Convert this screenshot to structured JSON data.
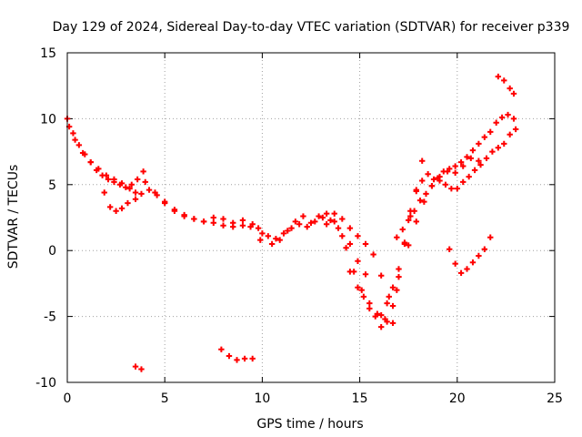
{
  "chart_data": {
    "type": "scatter",
    "title": "Day 129 of 2024, Sidereal Day-to-day VTEC variation (SDTVAR) for receiver p339",
    "xlabel": "GPS time / hours",
    "ylabel": "SDTVAR / TECUs",
    "xlim": [
      0,
      25
    ],
    "ylim": [
      -10,
      15
    ],
    "xticks": [
      "0",
      "5",
      "10",
      "15",
      "20",
      "25"
    ],
    "yticks": [
      "-10",
      "-5",
      "0",
      "5",
      "10",
      "15"
    ],
    "grid": true,
    "marker": "plus",
    "color": "#ff0000",
    "series": [
      {
        "x": [
          0.0,
          0.3,
          0.6,
          0.9,
          1.2,
          1.5,
          1.8,
          2.1,
          2.4,
          2.7,
          3.0,
          3.3,
          3.6,
          3.9
        ],
        "y": [
          10.0,
          8.9,
          8.0,
          7.3,
          6.7,
          6.1,
          5.7,
          5.4,
          5.2,
          5.0,
          4.8,
          5.0,
          5.4,
          6.0
        ]
      },
      {
        "x": [
          0.1,
          0.4,
          0.8,
          1.2,
          1.6,
          2.0,
          2.4,
          2.8,
          3.2,
          3.5
        ],
        "y": [
          9.4,
          8.4,
          7.4,
          6.7,
          6.2,
          5.7,
          5.4,
          5.1,
          4.7,
          4.4
        ]
      },
      {
        "x": [
          1.9,
          2.2,
          2.5,
          2.8,
          3.1,
          3.5,
          3.8,
          4.2,
          4.6,
          5.0,
          5.5,
          6.0,
          6.5,
          7.0,
          7.5,
          8.0,
          8.5,
          9.0,
          9.4,
          9.8
        ],
        "y": [
          4.4,
          3.3,
          3.0,
          3.2,
          3.6,
          3.9,
          4.3,
          4.6,
          4.2,
          3.7,
          3.1,
          2.7,
          2.4,
          2.2,
          2.1,
          1.9,
          1.8,
          1.9,
          1.8,
          1.7
        ]
      },
      {
        "x": [
          4.0,
          4.5,
          5.0,
          5.5,
          6.0,
          6.5,
          7.0,
          7.5,
          8.0,
          8.5,
          9.0,
          9.5,
          10.0
        ],
        "y": [
          5.2,
          4.4,
          3.6,
          3.0,
          2.6,
          2.4,
          2.2,
          2.5,
          2.4,
          2.1,
          2.3,
          2.0,
          1.3
        ]
      },
      {
        "x": [
          3.5,
          3.8
        ],
        "y": [
          -8.8,
          -9.0
        ]
      },
      {
        "x": [
          7.9,
          8.3,
          8.7,
          9.1,
          9.5
        ],
        "y": [
          -7.5,
          -8.0,
          -8.3,
          -8.2,
          -8.2
        ]
      },
      {
        "x": [
          9.9,
          10.3,
          10.7,
          11.1,
          11.5,
          11.9,
          12.3,
          12.7,
          13.1,
          13.5,
          13.9,
          14.3,
          14.7,
          15.1,
          15.5,
          15.9,
          16.3,
          16.7
        ],
        "y": [
          0.8,
          1.1,
          0.9,
          1.3,
          1.7,
          2.0,
          1.8,
          2.2,
          2.5,
          2.3,
          1.7,
          0.2,
          -1.6,
          -3.0,
          -4.0,
          -4.8,
          -5.2,
          -5.5
        ]
      },
      {
        "x": [
          10.5,
          10.9,
          11.3,
          11.7,
          12.1,
          12.5,
          12.9,
          13.3,
          13.7,
          14.1,
          14.5,
          14.9,
          15.3
        ],
        "y": [
          0.5,
          0.8,
          1.5,
          2.2,
          2.6,
          2.1,
          2.6,
          2.8,
          2.2,
          1.1,
          0.5,
          -0.8,
          -1.8
        ]
      },
      {
        "x": [
          13.3,
          13.7,
          14.1,
          14.5,
          14.9,
          15.3,
          15.7,
          16.1,
          16.5,
          16.9
        ],
        "y": [
          2.0,
          2.8,
          2.4,
          1.7,
          1.1,
          0.5,
          -0.3,
          -1.9,
          -3.5,
          -3.0
        ]
      },
      {
        "x": [
          14.5,
          14.9,
          15.2,
          15.5,
          15.8,
          16.1,
          16.4,
          16.7,
          17.0,
          17.3,
          17.6,
          17.9,
          18.2,
          18.5,
          18.8,
          19.1,
          19.4,
          19.7,
          20.0,
          20.3,
          20.6,
          20.9,
          21.2,
          21.5,
          21.8,
          22.1,
          22.4,
          22.7,
          23.0
        ],
        "y": [
          -1.6,
          -2.8,
          -3.5,
          -4.4,
          -5.0,
          -5.8,
          -5.4,
          -4.2,
          -2.0,
          0.6,
          3.0,
          4.6,
          5.3,
          5.8,
          5.4,
          5.3,
          5.0,
          4.7,
          4.7,
          5.2,
          5.6,
          6.1,
          6.5,
          7.0,
          7.5,
          7.8,
          8.1,
          8.8,
          9.2
        ]
      },
      {
        "x": [
          16.1,
          16.4,
          16.7,
          17.0,
          17.3,
          17.6,
          17.9,
          18.2
        ],
        "y": [
          -4.9,
          -4.0,
          -2.8,
          -1.4,
          0.5,
          2.6,
          4.5,
          6.8
        ]
      },
      {
        "x": [
          16.9,
          17.2,
          17.5,
          17.8,
          18.1,
          18.4,
          18.7,
          19.0,
          19.3,
          19.6,
          19.9,
          20.2,
          20.5,
          20.8,
          21.1,
          21.4,
          21.7,
          22.0,
          22.3,
          22.6,
          22.9
        ],
        "y": [
          1.0,
          1.6,
          2.3,
          3.0,
          3.8,
          4.3,
          4.9,
          5.5,
          6.0,
          6.2,
          6.4,
          6.7,
          7.1,
          7.6,
          8.1,
          8.6,
          9.0,
          9.7,
          10.1,
          10.3,
          10.0
        ]
      },
      {
        "x": [
          17.5,
          17.9,
          18.3,
          18.7,
          19.1,
          19.5,
          19.9,
          20.3,
          20.7,
          21.1
        ],
        "y": [
          0.4,
          2.2,
          3.7,
          4.9,
          5.6,
          6.0,
          5.9,
          6.4,
          7.0,
          6.8
        ]
      },
      {
        "x": [
          19.6,
          19.9,
          20.2,
          20.5,
          20.8,
          21.1,
          21.4,
          21.7
        ],
        "y": [
          0.1,
          -1.0,
          -1.7,
          -1.4,
          -0.9,
          -0.4,
          0.1,
          1.0
        ]
      },
      {
        "x": [
          22.1,
          22.4,
          22.7,
          22.9
        ],
        "y": [
          13.2,
          12.9,
          12.3,
          11.9
        ]
      }
    ]
  }
}
